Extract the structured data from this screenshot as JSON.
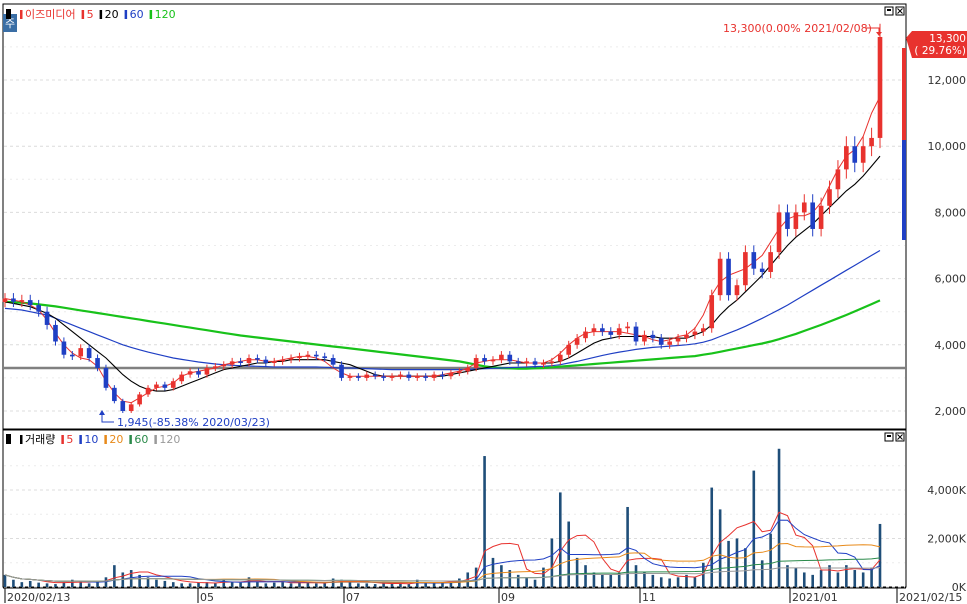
{
  "price_legend": [
    {
      "text": "이즈미디어",
      "color": "#e8322e"
    },
    {
      "text": "5",
      "color": "#e8322e"
    },
    {
      "text": "20",
      "color": "#000000"
    },
    {
      "text": "60",
      "color": "#1f3fc4"
    },
    {
      "text": "120",
      "color": "#18c21a"
    }
  ],
  "volume_legend": [
    {
      "text": "거래량",
      "color": "#000000"
    },
    {
      "text": "5",
      "color": "#e8322e"
    },
    {
      "text": "10",
      "color": "#1f3fc4"
    },
    {
      "text": "20",
      "color": "#e88a1a"
    },
    {
      "text": "60",
      "color": "#2a8a4a"
    },
    {
      "text": "120",
      "color": "#9a9a9a"
    }
  ],
  "corner_badge": "주",
  "annotations": {
    "high": "13,300(0.00% 2021/02/08)",
    "low": "1,945(-85.38% 2020/03/23)"
  },
  "last_price": {
    "value": "13,300",
    "change": "( 29.76%)"
  },
  "colors": {
    "up": "#e8322e",
    "down": "#1f3fc4",
    "ma5": "#e8322e",
    "ma20": "#000000",
    "ma60": "#1f3fc4",
    "ma120": "#18c21a",
    "ref_line": "#808080",
    "volume_bar": "#1f4e79"
  },
  "chart_data": [
    {
      "type": "candlestick",
      "title": "이즈미디어",
      "x_labels": [
        "2020/02/13",
        "05",
        "07",
        "09",
        "11",
        "2021/01",
        "2021/02/15"
      ],
      "y_tick_labels": [
        "2,000",
        "4,000",
        "6,000",
        "8,000",
        "10,000",
        "12,000"
      ],
      "ylim": [
        1600,
        14000
      ],
      "reference_price": 3300,
      "last_price": 13300,
      "moving_averages": [
        {
          "name": "5",
          "color": "#e8322e"
        },
        {
          "name": "20",
          "color": "#000000"
        },
        {
          "name": "60",
          "color": "#1f3fc4"
        },
        {
          "name": "120",
          "color": "#18c21a"
        }
      ],
      "series": [
        {
          "name": "종가",
          "date_range": [
            "2020/02/13",
            "2021/02/08"
          ],
          "close": [
            5400,
            5300,
            5350,
            5200,
            5000,
            4600,
            4100,
            3700,
            3650,
            3900,
            3600,
            3300,
            2700,
            2300,
            2000,
            2200,
            2500,
            2700,
            2800,
            2700,
            2900,
            3100,
            3200,
            3100,
            3300,
            3350,
            3400,
            3500,
            3450,
            3600,
            3550,
            3450,
            3500,
            3550,
            3600,
            3650,
            3700,
            3650,
            3600,
            3400,
            3000,
            3050,
            3000,
            3100,
            3050,
            3000,
            3050,
            3100,
            3000,
            3050,
            3000,
            3100,
            3050,
            3150,
            3200,
            3300,
            3600,
            3500,
            3550,
            3700,
            3500,
            3450,
            3500,
            3400,
            3450,
            3500,
            3700,
            4000,
            4200,
            4400,
            4500,
            4400,
            4300,
            4500,
            4550,
            4100,
            4300,
            4200,
            4000,
            4100,
            4200,
            4300,
            4400,
            4500,
            5500,
            6600,
            5500,
            5800,
            6800,
            6300,
            6200,
            6800,
            8000,
            7500,
            8000,
            8300,
            7500,
            8200,
            8700,
            9300,
            10000,
            9500,
            10000,
            10250,
            13300
          ]
        },
        {
          "name": "MA5",
          "values": [
            5400,
            5350,
            5300,
            5200,
            5050,
            4750,
            4350,
            4000,
            3750,
            3600,
            3550,
            3350,
            2900,
            2550,
            2300,
            2250,
            2400,
            2550,
            2700,
            2750,
            2850,
            3050,
            3150,
            3200,
            3250,
            3300,
            3400,
            3450,
            3500,
            3550,
            3550,
            3500,
            3500,
            3550,
            3600,
            3650,
            3650,
            3600,
            3500,
            3300,
            3150,
            3050,
            3050,
            3050,
            3050,
            3050,
            3050,
            3050,
            3050,
            3050,
            3050,
            3050,
            3100,
            3150,
            3200,
            3300,
            3450,
            3500,
            3550,
            3550,
            3550,
            3500,
            3450,
            3450,
            3450,
            3550,
            3750,
            4000,
            4200,
            4350,
            4400,
            4400,
            4400,
            4400,
            4350,
            4300,
            4250,
            4150,
            4100,
            4150,
            4250,
            4300,
            4500,
            4900,
            5500,
            5900,
            6100,
            6200,
            6300,
            6500,
            6700,
            7100,
            7500,
            7800,
            7900,
            7900,
            8000,
            8300,
            8800,
            9300,
            9700,
            9900,
            10300,
            11000,
            11500
          ]
        },
        {
          "name": "MA20",
          "values": [
            5300,
            5250,
            5200,
            5150,
            5050,
            4950,
            4800,
            4600,
            4400,
            4200,
            4000,
            3800,
            3600,
            3350,
            3100,
            2900,
            2750,
            2650,
            2600,
            2600,
            2650,
            2750,
            2850,
            2950,
            3050,
            3150,
            3250,
            3300,
            3350,
            3400,
            3450,
            3450,
            3500,
            3500,
            3550,
            3550,
            3550,
            3550,
            3550,
            3500,
            3450,
            3400,
            3300,
            3200,
            3100,
            3050,
            3050,
            3050,
            3050,
            3050,
            3050,
            3050,
            3050,
            3100,
            3150,
            3200,
            3250,
            3300,
            3350,
            3400,
            3450,
            3450,
            3450,
            3450,
            3450,
            3450,
            3500,
            3600,
            3750,
            3900,
            4050,
            4150,
            4200,
            4250,
            4250,
            4250,
            4250,
            4250,
            4200,
            4200,
            4200,
            4200,
            4300,
            4400,
            4600,
            4900,
            5150,
            5350,
            5600,
            5850,
            6100,
            6400,
            6700,
            7000,
            7250,
            7450,
            7650,
            7900,
            8150,
            8400,
            8650,
            8850,
            9100,
            9400,
            9700
          ]
        },
        {
          "name": "MA60",
          "values": [
            5100,
            5080,
            5050,
            5000,
            4950,
            4900,
            4800,
            4700,
            4600,
            4500,
            4400,
            4300,
            4200,
            4100,
            4000,
            3920,
            3850,
            3780,
            3720,
            3660,
            3600,
            3560,
            3520,
            3480,
            3450,
            3420,
            3400,
            3380,
            3370,
            3360,
            3350,
            3340,
            3330,
            3330,
            3330,
            3330,
            3330,
            3330,
            3320,
            3310,
            3300,
            3300,
            3290,
            3280,
            3270,
            3260,
            3250,
            3250,
            3250,
            3250,
            3250,
            3250,
            3250,
            3250,
            3250,
            3250,
            3270,
            3280,
            3290,
            3300,
            3310,
            3320,
            3330,
            3340,
            3350,
            3370,
            3400,
            3450,
            3500,
            3560,
            3620,
            3680,
            3730,
            3780,
            3820,
            3860,
            3890,
            3920,
            3940,
            3960,
            3980,
            4000,
            4030,
            4080,
            4150,
            4250,
            4350,
            4450,
            4560,
            4680,
            4800,
            4930,
            5060,
            5200,
            5350,
            5500,
            5650,
            5800,
            5950,
            6100,
            6250,
            6400,
            6550,
            6700,
            6850
          ]
        },
        {
          "name": "MA120",
          "values": [
            5300,
            5290,
            5270,
            5250,
            5220,
            5190,
            5160,
            5120,
            5080,
            5040,
            5000,
            4960,
            4920,
            4880,
            4840,
            4800,
            4760,
            4720,
            4680,
            4640,
            4600,
            4560,
            4520,
            4480,
            4440,
            4400,
            4360,
            4320,
            4280,
            4250,
            4220,
            4190,
            4160,
            4130,
            4100,
            4070,
            4040,
            4010,
            3980,
            3950,
            3920,
            3890,
            3860,
            3830,
            3800,
            3770,
            3740,
            3710,
            3680,
            3650,
            3620,
            3590,
            3560,
            3530,
            3500,
            3450,
            3400,
            3350,
            3320,
            3300,
            3290,
            3280,
            3280,
            3290,
            3300,
            3320,
            3340,
            3360,
            3380,
            3400,
            3420,
            3440,
            3460,
            3480,
            3500,
            3520,
            3540,
            3560,
            3580,
            3600,
            3620,
            3640,
            3660,
            3700,
            3740,
            3790,
            3840,
            3890,
            3940,
            3990,
            4040,
            4100,
            4170,
            4250,
            4330,
            4420,
            4510,
            4600,
            4700,
            4800,
            4900,
            5010,
            5120,
            5230,
            5340
          ]
        }
      ]
    },
    {
      "type": "bar",
      "title": "거래량",
      "y_tick_labels": [
        "0K",
        "2,000K",
        "4,000K"
      ],
      "ylim": [
        0,
        6200
      ],
      "unit": "K",
      "values_k": [
        500,
        300,
        200,
        250,
        180,
        150,
        120,
        200,
        300,
        250,
        150,
        200,
        400,
        900,
        600,
        700,
        500,
        400,
        300,
        250,
        200,
        150,
        150,
        180,
        200,
        150,
        300,
        200,
        180,
        400,
        200,
        150,
        180,
        200,
        150,
        200,
        180,
        150,
        150,
        350,
        300,
        200,
        150,
        150,
        120,
        150,
        150,
        150,
        120,
        300,
        150,
        150,
        200,
        250,
        350,
        600,
        800,
        5400,
        1200,
        900,
        700,
        500,
        400,
        300,
        800,
        2000,
        3900,
        2700,
        1200,
        900,
        600,
        500,
        500,
        600,
        3300,
        900,
        600,
        500,
        400,
        350,
        400,
        500,
        400,
        1000,
        4100,
        3200,
        1900,
        2000,
        1600,
        4800,
        1100,
        2200,
        5700,
        900,
        800,
        600,
        500,
        700,
        900,
        600,
        900,
        700,
        600,
        800,
        2600
      ]
    }
  ]
}
